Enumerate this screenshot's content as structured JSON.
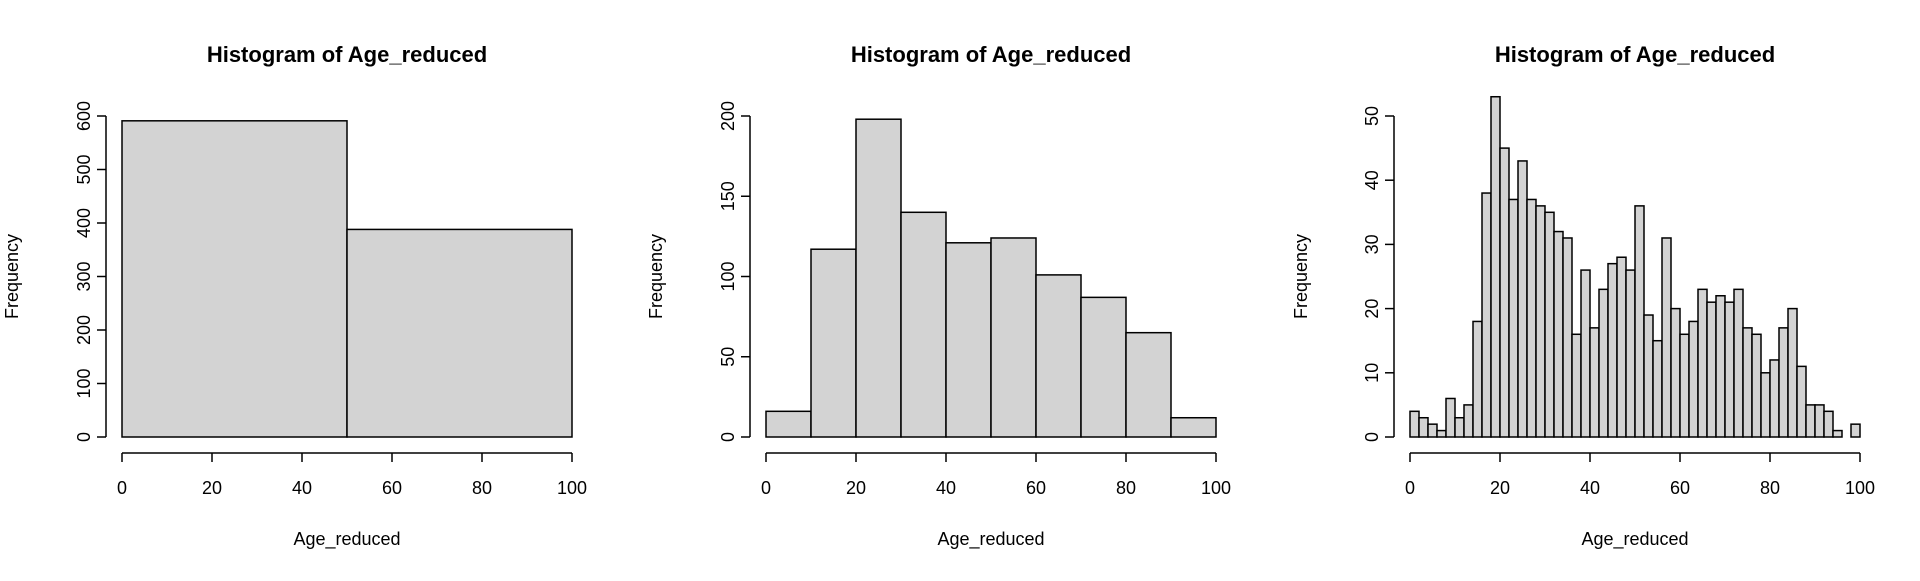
{
  "chart_data": [
    {
      "type": "bar",
      "title": "Histogram of Age_reduced",
      "xlabel": "Age_reduced",
      "ylabel": "Frequency",
      "x_ticks": [
        0,
        20,
        40,
        60,
        80,
        100
      ],
      "y_ticks": [
        0,
        100,
        200,
        300,
        400,
        500,
        600
      ],
      "xlim": [
        0,
        100
      ],
      "ylim": [
        0,
        600
      ],
      "bin_width": 50,
      "bins": [
        0,
        50
      ],
      "values": [
        591,
        388
      ],
      "grid": false
    },
    {
      "type": "bar",
      "title": "Histogram of Age_reduced",
      "xlabel": "Age_reduced",
      "ylabel": "Frequency",
      "x_ticks": [
        0,
        20,
        40,
        60,
        80,
        100
      ],
      "y_ticks": [
        0,
        50,
        100,
        150,
        200
      ],
      "xlim": [
        0,
        100
      ],
      "ylim": [
        0,
        200
      ],
      "bin_width": 10,
      "bins": [
        0,
        10,
        20,
        30,
        40,
        50,
        60,
        70,
        80,
        90
      ],
      "values": [
        16,
        117,
        198,
        140,
        121,
        124,
        101,
        87,
        65,
        12
      ],
      "grid": false
    },
    {
      "type": "bar",
      "title": "Histogram of Age_reduced",
      "xlabel": "Age_reduced",
      "ylabel": "Frequency",
      "x_ticks": [
        0,
        20,
        40,
        60,
        80,
        100
      ],
      "y_ticks": [
        0,
        10,
        20,
        30,
        40,
        50
      ],
      "xlim": [
        0,
        100
      ],
      "ylim": [
        0,
        50
      ],
      "bin_width": 2,
      "bins": [
        0,
        2,
        4,
        6,
        8,
        10,
        12,
        14,
        16,
        18,
        20,
        22,
        24,
        26,
        28,
        30,
        32,
        34,
        36,
        38,
        40,
        42,
        44,
        46,
        48,
        50,
        52,
        54,
        56,
        58,
        60,
        62,
        64,
        66,
        68,
        70,
        72,
        74,
        76,
        78,
        80,
        82,
        84,
        86,
        88,
        90,
        92,
        94,
        96,
        98
      ],
      "values": [
        4,
        3,
        2,
        1,
        6,
        3,
        5,
        18,
        38,
        53,
        45,
        37,
        43,
        37,
        36,
        35,
        32,
        31,
        16,
        26,
        17,
        23,
        27,
        28,
        26,
        36,
        19,
        15,
        31,
        20,
        16,
        18,
        23,
        21,
        22,
        21,
        23,
        17,
        16,
        10,
        12,
        17,
        20,
        11,
        5,
        5,
        4,
        1,
        0,
        2
      ],
      "grid": false
    }
  ]
}
